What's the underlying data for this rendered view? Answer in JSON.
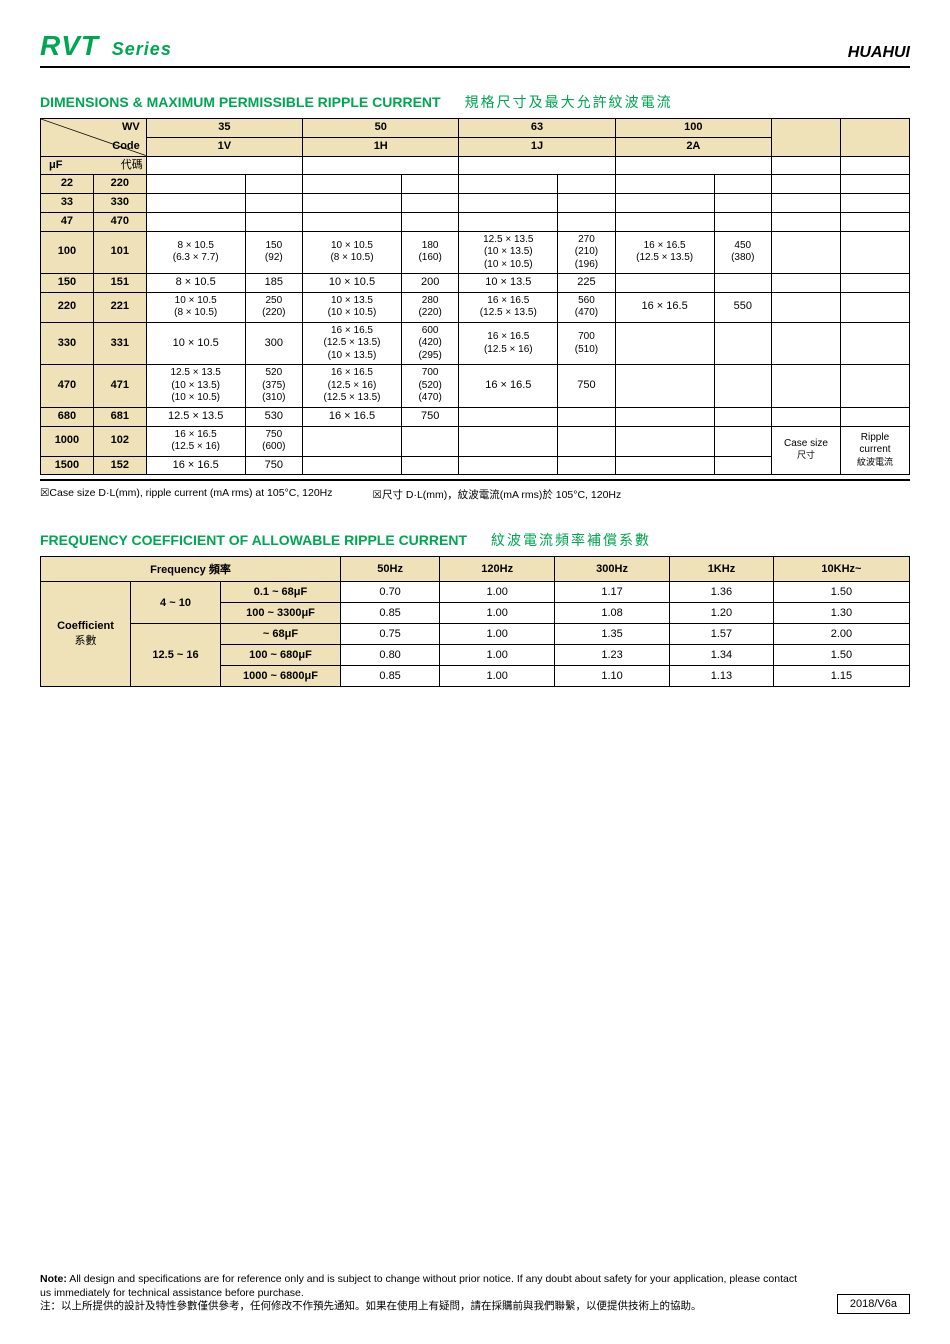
{
  "header": {
    "rvt": "RVT",
    "series": "Series",
    "brand": "HUAHUI"
  },
  "dim_section": {
    "title_en": "DIMENSIONS & MAXIMUM PERMISSIBLE RIPPLE CURRENT",
    "title_cn": "規格尺寸及最大允許紋波電流",
    "wv_label": "WV",
    "code_label": "Code",
    "uf_label": "μF",
    "uf_cn": "代碼",
    "voltages": [
      "35",
      "50",
      "63",
      "100"
    ],
    "codes": [
      "1V",
      "1H",
      "1J",
      "2A"
    ],
    "case_size_label": "Case size",
    "case_size_cn": "尺寸",
    "ripple_label": "Ripple current",
    "ripple_cn": "紋波電流",
    "rows": [
      {
        "uf": "22",
        "code": "220",
        "cells": [
          "",
          "",
          "",
          "",
          "",
          "",
          "",
          "",
          ""
        ]
      },
      {
        "uf": "33",
        "code": "330",
        "cells": [
          "",
          "",
          "",
          "",
          "",
          "",
          "",
          "",
          ""
        ]
      },
      {
        "uf": "47",
        "code": "470",
        "cells": [
          "",
          "",
          "",
          "",
          "",
          "",
          "",
          "",
          ""
        ]
      },
      {
        "uf": "100",
        "code": "101",
        "cells": [
          "8 × 10.5\n(6.3 × 7.7)",
          "150\n(92)",
          "10 × 10.5\n(8 × 10.5)",
          "180\n(160)",
          "12.5 × 13.5\n(10 × 13.5)\n(10 × 10.5)",
          "270\n(210)\n(196)",
          "16 × 16.5\n(12.5 × 13.5)",
          "450\n(380)",
          ""
        ]
      },
      {
        "uf": "150",
        "code": "151",
        "cells": [
          "8 × 10.5",
          "185",
          "10 × 10.5",
          "200",
          "10 × 13.5",
          "225",
          "",
          "",
          ""
        ]
      },
      {
        "uf": "220",
        "code": "221",
        "cells": [
          "10 × 10.5\n(8 × 10.5)",
          "250\n(220)",
          "10 × 13.5\n(10 × 10.5)",
          "280\n(220)",
          "16 × 16.5\n(12.5 × 13.5)",
          "560\n(470)",
          "16 × 16.5",
          "550",
          ""
        ]
      },
      {
        "uf": "330",
        "code": "331",
        "cells": [
          "10 × 10.5",
          "300",
          "16 × 16.5\n(12.5 × 13.5)\n(10 × 13.5)",
          "600\n(420)\n(295)",
          "16 × 16.5\n(12.5 × 16)",
          "700\n(510)",
          "",
          "",
          ""
        ]
      },
      {
        "uf": "470",
        "code": "471",
        "cells": [
          "12.5 × 13.5\n(10 × 13.5)\n(10 × 10.5)",
          "520\n(375)\n(310)",
          "16 × 16.5\n(12.5 × 16)\n(12.5 × 13.5)",
          "700\n(520)\n(470)",
          "16 × 16.5",
          "750",
          "",
          "",
          ""
        ]
      },
      {
        "uf": "680",
        "code": "681",
        "cells": [
          "12.5 × 13.5",
          "530",
          "16 × 16.5",
          "750",
          "",
          "",
          "",
          "",
          ""
        ]
      },
      {
        "uf": "1000",
        "code": "102",
        "cells": [
          "16 × 16.5\n(12.5 × 16)",
          "750\n(600)",
          "",
          "",
          "",
          "",
          "",
          "",
          ""
        ]
      },
      {
        "uf": "1500",
        "code": "152",
        "cells": [
          "16 × 16.5",
          "750",
          "",
          "",
          "",
          "",
          "",
          "",
          ""
        ]
      }
    ],
    "footnote_en": "☒Case size   D·L(mm), ripple current (mA rms) at 105°C, 120Hz",
    "footnote_cn": "☒尺寸       D·L(mm)，紋波電流(mA rms)於   105°C, 120Hz"
  },
  "freq_section": {
    "title_en": "FREQUENCY COEFFICIENT OF ALLOWABLE RIPPLE CURRENT",
    "title_cn": "紋波電流頻率補償系數",
    "freq_label_en": "Frequency",
    "freq_label_cn": "頻率",
    "coef_label_en": "Coefficient",
    "coef_label_cn": "系數",
    "freq_headers": [
      "50Hz",
      "120Hz",
      "300Hz",
      "1KHz",
      "10KHz~"
    ],
    "groups": [
      {
        "range": "4 ~  10",
        "rows": [
          {
            "cap": "0.1 ~ 68μF",
            "vals": [
              "0.70",
              "1.00",
              "1.17",
              "1.36",
              "1.50"
            ]
          },
          {
            "cap": "100 ~ 3300μF",
            "vals": [
              "0.85",
              "1.00",
              "1.08",
              "1.20",
              "1.30"
            ]
          }
        ]
      },
      {
        "range": "12.5 ~  16",
        "rows": [
          {
            "cap": "~ 68μF",
            "vals": [
              "0.75",
              "1.00",
              "1.35",
              "1.57",
              "2.00"
            ]
          },
          {
            "cap": "100 ~ 680μF",
            "vals": [
              "0.80",
              "1.00",
              "1.23",
              "1.34",
              "1.50"
            ]
          },
          {
            "cap": "1000 ~ 6800μF",
            "vals": [
              "0.85",
              "1.00",
              "1.10",
              "1.13",
              "1.15"
            ]
          }
        ]
      }
    ]
  },
  "footer": {
    "note_label": "Note:",
    "note_en": "All design and specifications are for reference only and is subject to change without prior notice. If any doubt about safety for your application, please contact us immediately for technical assistance before purchase.",
    "note_cn": "注：以上所提供的設計及特性參數僅供參考，任何修改不作預先通知。如果在使用上有疑問，請在採購前與我們聯繫，以便提供技術上的協助。",
    "version": "2018/V6a"
  },
  "colors": {
    "beige": "#f0e2b8",
    "green": "#00a651"
  }
}
